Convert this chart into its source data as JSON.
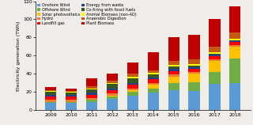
{
  "years": [
    "2009",
    "2010",
    "2011",
    "2012",
    "2013",
    "2014",
    "2015",
    "2016",
    "2017",
    "2018"
  ],
  "series": {
    "Onshore Wind": [
      8,
      8,
      9,
      12,
      16,
      19,
      22,
      21,
      29,
      30
    ],
    "Offshore Wind": [
      1,
      1,
      2,
      3,
      4,
      5,
      8,
      10,
      13,
      27
    ],
    "Solar photovoltaics": [
      0,
      0,
      0,
      1,
      2,
      4,
      7,
      9,
      12,
      13
    ],
    "Hydro": [
      2,
      2,
      2,
      2,
      2,
      2,
      2,
      2,
      2,
      2
    ],
    "Landfill gas": [
      4,
      4,
      4,
      4,
      4,
      4,
      4,
      3,
      3,
      3
    ],
    "Energy from waste": [
      2,
      2,
      2,
      2,
      2,
      2,
      2,
      2,
      2,
      2
    ],
    "Co-firing with fossil fuels": [
      3,
      2,
      4,
      5,
      5,
      3,
      3,
      2,
      1,
      0
    ],
    "Animal Biomass (non-AD)": [
      1,
      1,
      1,
      1,
      2,
      2,
      2,
      2,
      2,
      2
    ],
    "Anaerobic Digestion": [
      1,
      1,
      2,
      2,
      3,
      3,
      4,
      5,
      6,
      7
    ],
    "Plant Biomass": [
      3,
      3,
      9,
      8,
      12,
      20,
      26,
      27,
      30,
      28
    ]
  },
  "colors": {
    "Onshore Wind": "#5b9bd5",
    "Offshore Wind": "#70ad47",
    "Solar photovoltaics": "#ffc000",
    "Hydro": "#ed7d31",
    "Landfill gas": "#ff0000",
    "Energy from waste": "#244185",
    "Co-firing with fossil fuels": "#375623",
    "Animal Biomass (non-AD)": "#ffff00",
    "Anaerobic Digestion": "#c65911",
    "Plant Biomass": "#c00000"
  },
  "stack_order": [
    "Onshore Wind",
    "Offshore Wind",
    "Solar photovoltaics",
    "Hydro",
    "Landfill gas",
    "Energy from waste",
    "Co-firing with fossil fuels",
    "Animal Biomass (non-AD)",
    "Anaerobic Digestion",
    "Plant Biomass"
  ],
  "legend_col1": [
    "Onshore Wind",
    "Solar photovoltaics",
    "Landfill gas",
    "Co-firing with fossil fuels",
    "Anaerobic Digestion"
  ],
  "legend_col2": [
    "Offshore Wind",
    "Hydro",
    "Energy from waste",
    "Animal Biomass (non-AD)",
    "Plant Biomass"
  ],
  "ylabel": "Electricity generation (TWh)",
  "ylim": [
    0,
    120
  ],
  "yticks": [
    0,
    20,
    40,
    60,
    80,
    100,
    120
  ],
  "bg_color": "#f0ede8"
}
